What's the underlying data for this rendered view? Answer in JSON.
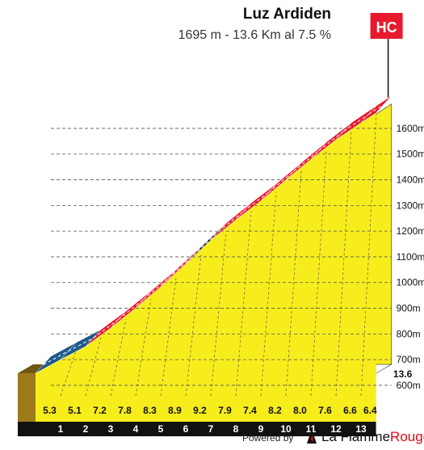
{
  "header": {
    "title": "Luz Ardiden",
    "subtitle": "1695 m - 13.6 Km al 7.5 %",
    "category": "HC"
  },
  "footer": {
    "powered_by": "Powered by",
    "brand_la": "La ",
    "brand_flamme": "Flamme",
    "brand_rouge": "Rouge"
  },
  "chart_data": {
    "type": "area",
    "title": "Luz Ardiden",
    "subtitle": "1695 m - 13.6 Km al 7.5 %",
    "category": "HC",
    "x_unit": "km",
    "y_unit": "m",
    "km_ticks": [
      "1",
      "2",
      "3",
      "4",
      "5",
      "6",
      "7",
      "8",
      "9",
      "10",
      "11",
      "12",
      "13",
      "13.6"
    ],
    "segments": [
      {
        "km_start": 0,
        "km_end": 1,
        "gradient": 5.3,
        "color": "#1e5a8a"
      },
      {
        "km_start": 1,
        "km_end": 2,
        "gradient": 5.1,
        "color": "#1e5a8a"
      },
      {
        "km_start": 2,
        "km_end": 3,
        "gradient": 7.2,
        "color": "#e8192c"
      },
      {
        "km_start": 3,
        "km_end": 4,
        "gradient": 7.8,
        "color": "#e8192c"
      },
      {
        "km_start": 4,
        "km_end": 5,
        "gradient": 8.3,
        "color": "#e8192c"
      },
      {
        "km_start": 5,
        "km_end": 6,
        "gradient": 8.9,
        "color": "#e8192c"
      },
      {
        "km_start": 6,
        "km_end": 7,
        "gradient": 9.2,
        "color": "#111111"
      },
      {
        "km_start": 7,
        "km_end": 8,
        "gradient": 7.9,
        "color": "#e8192c"
      },
      {
        "km_start": 8,
        "km_end": 9,
        "gradient": 7.4,
        "color": "#e8192c"
      },
      {
        "km_start": 9,
        "km_end": 10,
        "gradient": 8.2,
        "color": "#e8192c"
      },
      {
        "km_start": 10,
        "km_end": 11,
        "gradient": 8.0,
        "color": "#e8192c"
      },
      {
        "km_start": 11,
        "km_end": 12,
        "gradient": 7.6,
        "color": "#e8192c"
      },
      {
        "km_start": 12,
        "km_end": 13,
        "gradient": 6.6,
        "color": "#e8192c"
      },
      {
        "km_start": 13,
        "km_end": 13.6,
        "gradient": 6.4,
        "color": "#e8192c"
      }
    ],
    "gradient_labels": [
      "5.3",
      "5.1",
      "7.2",
      "7.8",
      "8.3",
      "8.9",
      "9.2",
      "7.9",
      "7.4",
      "8.2",
      "8.0",
      "7.6",
      "6.6",
      "6.4"
    ],
    "altitude_ticks": [
      {
        "value": 600,
        "label": "600m"
      },
      {
        "value": 700,
        "label": "700m"
      },
      {
        "value": 800,
        "label": "800m"
      },
      {
        "value": 900,
        "label": "900m"
      },
      {
        "value": 1000,
        "label": "1000m"
      },
      {
        "value": 1100,
        "label": "1100m"
      },
      {
        "value": 1200,
        "label": "1200m"
      },
      {
        "value": 1300,
        "label": "1300m"
      },
      {
        "value": 1400,
        "label": "1400m"
      },
      {
        "value": 1500,
        "label": "1500m"
      },
      {
        "value": 1600,
        "label": "1600m"
      }
    ],
    "summit_altitude": 1695,
    "distance_km": 13.6,
    "grid": true,
    "fill_color": "#f7ed1c"
  }
}
